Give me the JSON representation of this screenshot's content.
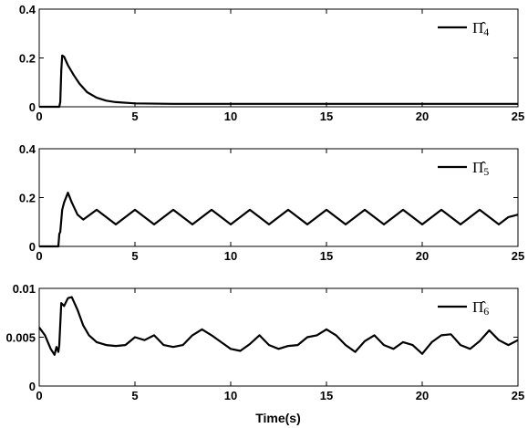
{
  "chart_data": [
    {
      "type": "line",
      "xlim": [
        0,
        25
      ],
      "ylim": [
        0,
        0.4
      ],
      "xticks": [
        "0",
        "5",
        "10",
        "15",
        "20",
        "25"
      ],
      "yticks": [
        "0",
        "0.2",
        "0.4"
      ],
      "xlabel": "",
      "grid": false,
      "legend_placement": "top-right",
      "series": [
        {
          "name": "Π̂4",
          "name_base": "Π̂",
          "name_sub": "4",
          "color": "#000000",
          "points": [
            [
              0,
              0
            ],
            [
              1.05,
              0
            ],
            [
              1.1,
              0.02
            ],
            [
              1.15,
              0.15
            ],
            [
              1.2,
              0.21
            ],
            [
              1.3,
              0.205
            ],
            [
              1.5,
              0.17
            ],
            [
              1.8,
              0.13
            ],
            [
              2.1,
              0.095
            ],
            [
              2.5,
              0.06
            ],
            [
              3.0,
              0.037
            ],
            [
              3.5,
              0.025
            ],
            [
              4.0,
              0.019
            ],
            [
              5.0,
              0.014
            ],
            [
              7.0,
              0.012
            ],
            [
              10,
              0.012
            ],
            [
              15,
              0.012
            ],
            [
              20,
              0.012
            ],
            [
              25,
              0.012
            ]
          ]
        }
      ]
    },
    {
      "type": "line",
      "xlim": [
        0,
        25
      ],
      "ylim": [
        0,
        0.4
      ],
      "xticks": [
        "0",
        "5",
        "10",
        "15",
        "20",
        "25"
      ],
      "yticks": [
        "0",
        "0.2",
        "0.4"
      ],
      "xlabel": "",
      "grid": false,
      "legend_placement": "top-right",
      "series": [
        {
          "name": "Π̂5",
          "name_base": "Π̂",
          "name_sub": "5",
          "color": "#000000",
          "points": [
            [
              0,
              0
            ],
            [
              1.0,
              0
            ],
            [
              1.05,
              0.05
            ],
            [
              1.1,
              0.06
            ],
            [
              1.2,
              0.15
            ],
            [
              1.3,
              0.18
            ],
            [
              1.5,
              0.22
            ],
            [
              1.7,
              0.18
            ],
            [
              2.0,
              0.13
            ],
            [
              2.3,
              0.11
            ],
            [
              3.0,
              0.15
            ],
            [
              4.0,
              0.09
            ],
            [
              5.0,
              0.15
            ],
            [
              6.0,
              0.09
            ],
            [
              7.0,
              0.15
            ],
            [
              8.0,
              0.09
            ],
            [
              9.0,
              0.15
            ],
            [
              10.0,
              0.09
            ],
            [
              11.0,
              0.15
            ],
            [
              12.0,
              0.09
            ],
            [
              13.0,
              0.15
            ],
            [
              14.0,
              0.09
            ],
            [
              15.0,
              0.15
            ],
            [
              16.0,
              0.09
            ],
            [
              17.0,
              0.15
            ],
            [
              18.0,
              0.09
            ],
            [
              19.0,
              0.15
            ],
            [
              20.0,
              0.09
            ],
            [
              21.0,
              0.15
            ],
            [
              22.0,
              0.09
            ],
            [
              23.0,
              0.15
            ],
            [
              24.0,
              0.09
            ],
            [
              24.5,
              0.12
            ],
            [
              25,
              0.13
            ]
          ]
        }
      ]
    },
    {
      "type": "line",
      "xlim": [
        0,
        25
      ],
      "ylim": [
        0,
        0.01
      ],
      "xticks": [
        "0",
        "5",
        "10",
        "15",
        "20",
        "25"
      ],
      "yticks": [
        "0",
        "0.005",
        "0.01"
      ],
      "xlabel": "Time(s)",
      "grid": false,
      "legend_placement": "top-right",
      "series": [
        {
          "name": "Π̂6",
          "name_base": "Π̂",
          "name_sub": "6",
          "color": "#000000",
          "points": [
            [
              0,
              0.006
            ],
            [
              0.3,
              0.0052
            ],
            [
              0.6,
              0.0038
            ],
            [
              0.8,
              0.0032
            ],
            [
              0.9,
              0.004
            ],
            [
              1.0,
              0.0035
            ],
            [
              1.05,
              0.0042
            ],
            [
              1.15,
              0.0085
            ],
            [
              1.3,
              0.0082
            ],
            [
              1.5,
              0.009
            ],
            [
              1.7,
              0.0091
            ],
            [
              2.0,
              0.0078
            ],
            [
              2.3,
              0.0062
            ],
            [
              2.6,
              0.0052
            ],
            [
              3.0,
              0.0045
            ],
            [
              3.5,
              0.0042
            ],
            [
              4.0,
              0.0041
            ],
            [
              4.5,
              0.0042
            ],
            [
              5.0,
              0.005
            ],
            [
              5.5,
              0.0047
            ],
            [
              6.0,
              0.0052
            ],
            [
              6.5,
              0.0042
            ],
            [
              7.0,
              0.004
            ],
            [
              7.5,
              0.0042
            ],
            [
              8.0,
              0.0052
            ],
            [
              8.5,
              0.0058
            ],
            [
              9.0,
              0.0052
            ],
            [
              9.5,
              0.0045
            ],
            [
              10.0,
              0.0038
            ],
            [
              10.5,
              0.0036
            ],
            [
              11.0,
              0.0043
            ],
            [
              11.5,
              0.0052
            ],
            [
              12.0,
              0.0042
            ],
            [
              12.5,
              0.0038
            ],
            [
              13.0,
              0.0041
            ],
            [
              13.5,
              0.0042
            ],
            [
              14.0,
              0.005
            ],
            [
              14.5,
              0.0052
            ],
            [
              15.0,
              0.0058
            ],
            [
              15.5,
              0.0052
            ],
            [
              16.0,
              0.0042
            ],
            [
              16.5,
              0.0035
            ],
            [
              17.0,
              0.0046
            ],
            [
              17.5,
              0.0052
            ],
            [
              18.0,
              0.0042
            ],
            [
              18.5,
              0.0038
            ],
            [
              19.0,
              0.0045
            ],
            [
              19.5,
              0.0042
            ],
            [
              20.0,
              0.0033
            ],
            [
              20.5,
              0.0045
            ],
            [
              21.0,
              0.0052
            ],
            [
              21.5,
              0.0053
            ],
            [
              22.0,
              0.0042
            ],
            [
              22.5,
              0.0038
            ],
            [
              23.0,
              0.0046
            ],
            [
              23.5,
              0.0057
            ],
            [
              24.0,
              0.0047
            ],
            [
              24.5,
              0.0042
            ],
            [
              25,
              0.0047
            ]
          ]
        }
      ]
    }
  ]
}
